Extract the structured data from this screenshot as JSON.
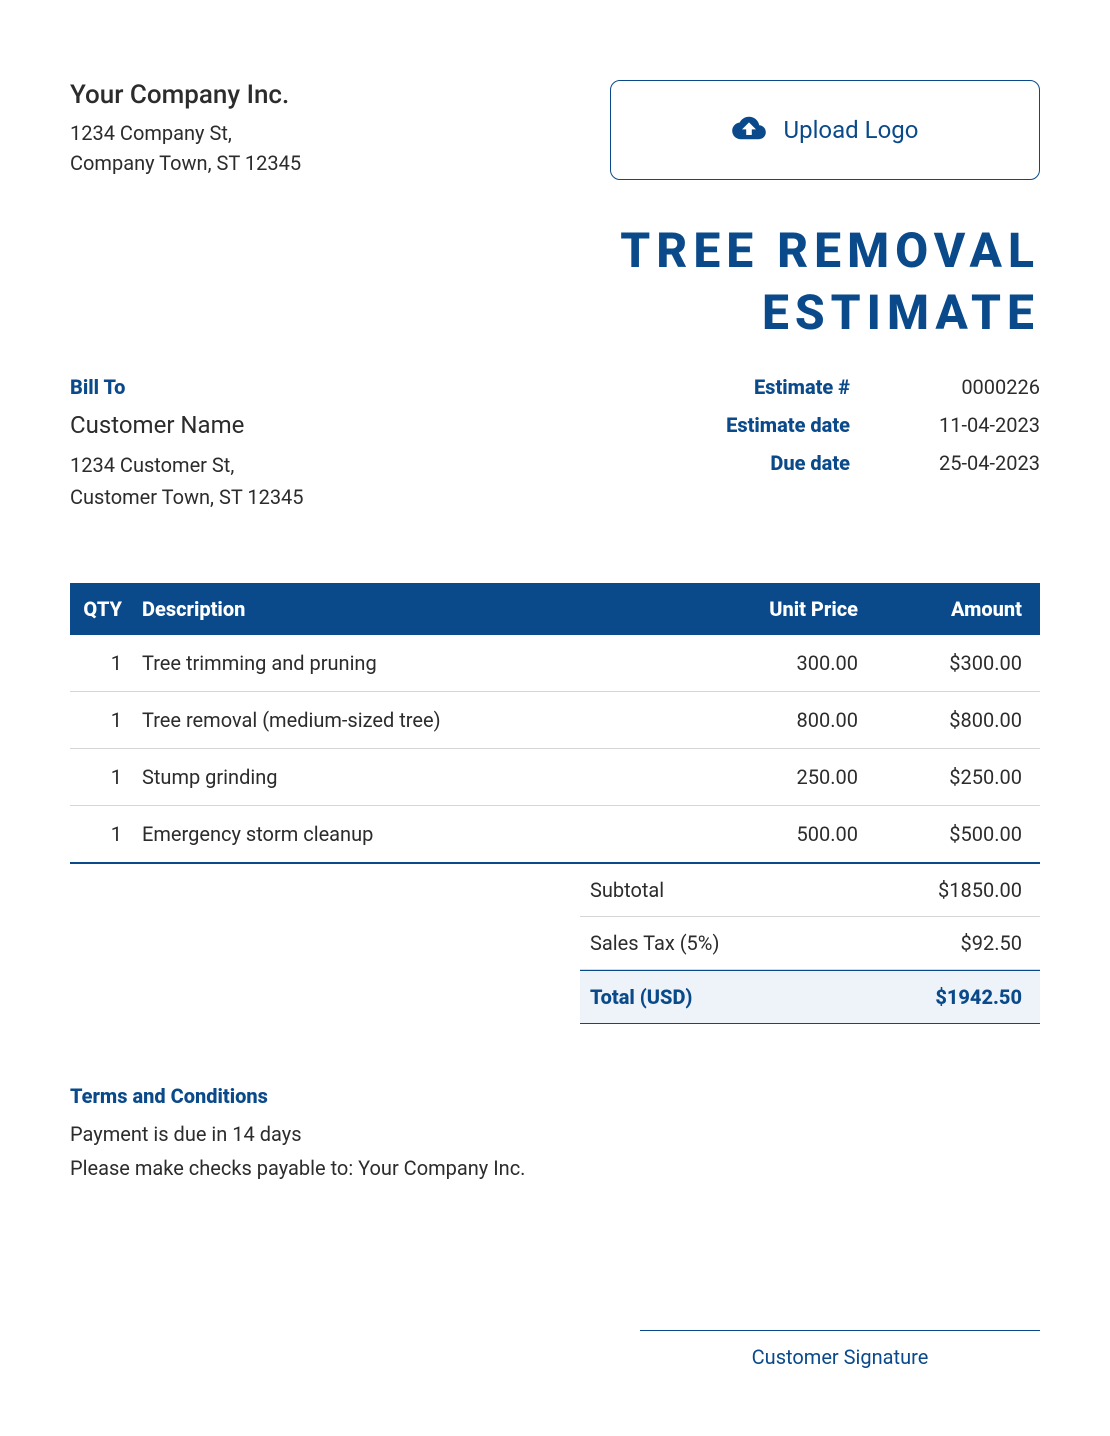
{
  "colors": {
    "primary": "#0a4a8a",
    "text": "#2c2c2c",
    "header_bg": "#0a4a8a",
    "header_text": "#ffffff",
    "row_border": "#d6d6d6",
    "total_bg": "#eef3fa",
    "background": "#ffffff"
  },
  "company": {
    "name": "Your Company Inc.",
    "addr1": "1234 Company St,",
    "addr2": "Company Town, ST 12345"
  },
  "upload": {
    "label": "Upload Logo",
    "icon": "cloud-upload-icon"
  },
  "title_line1": "TREE REMOVAL",
  "title_line2": "ESTIMATE",
  "bill_to": {
    "heading": "Bill To",
    "name": "Customer Name",
    "addr1": "1234 Customer St,",
    "addr2": "Customer Town, ST 12345"
  },
  "meta": {
    "estimate_num_label": "Estimate #",
    "estimate_num": "0000226",
    "estimate_date_label": "Estimate date",
    "estimate_date": "11-04-2023",
    "due_date_label": "Due date",
    "due_date": "25-04-2023"
  },
  "table": {
    "headers": {
      "qty": "QTY",
      "desc": "Description",
      "unit": "Unit Price",
      "amount": "Amount"
    },
    "rows": [
      {
        "qty": "1",
        "desc": "Tree trimming and pruning",
        "unit": "300.00",
        "amount": "$300.00"
      },
      {
        "qty": "1",
        "desc": "Tree removal (medium-sized tree)",
        "unit": "800.00",
        "amount": "$800.00"
      },
      {
        "qty": "1",
        "desc": "Stump grinding",
        "unit": "250.00",
        "amount": "$250.00"
      },
      {
        "qty": "1",
        "desc": "Emergency storm cleanup",
        "unit": "500.00",
        "amount": "$500.00"
      }
    ]
  },
  "totals": {
    "subtotal_label": "Subtotal",
    "subtotal": "$1850.00",
    "tax_label": "Sales Tax (5%)",
    "tax": "$92.50",
    "total_label": "Total (USD)",
    "total": "$1942.50"
  },
  "terms": {
    "heading": "Terms and Conditions",
    "line1": "Payment is due in 14 days",
    "line2": "Please make checks payable to: Your Company Inc."
  },
  "signature_label": "Customer Signature"
}
